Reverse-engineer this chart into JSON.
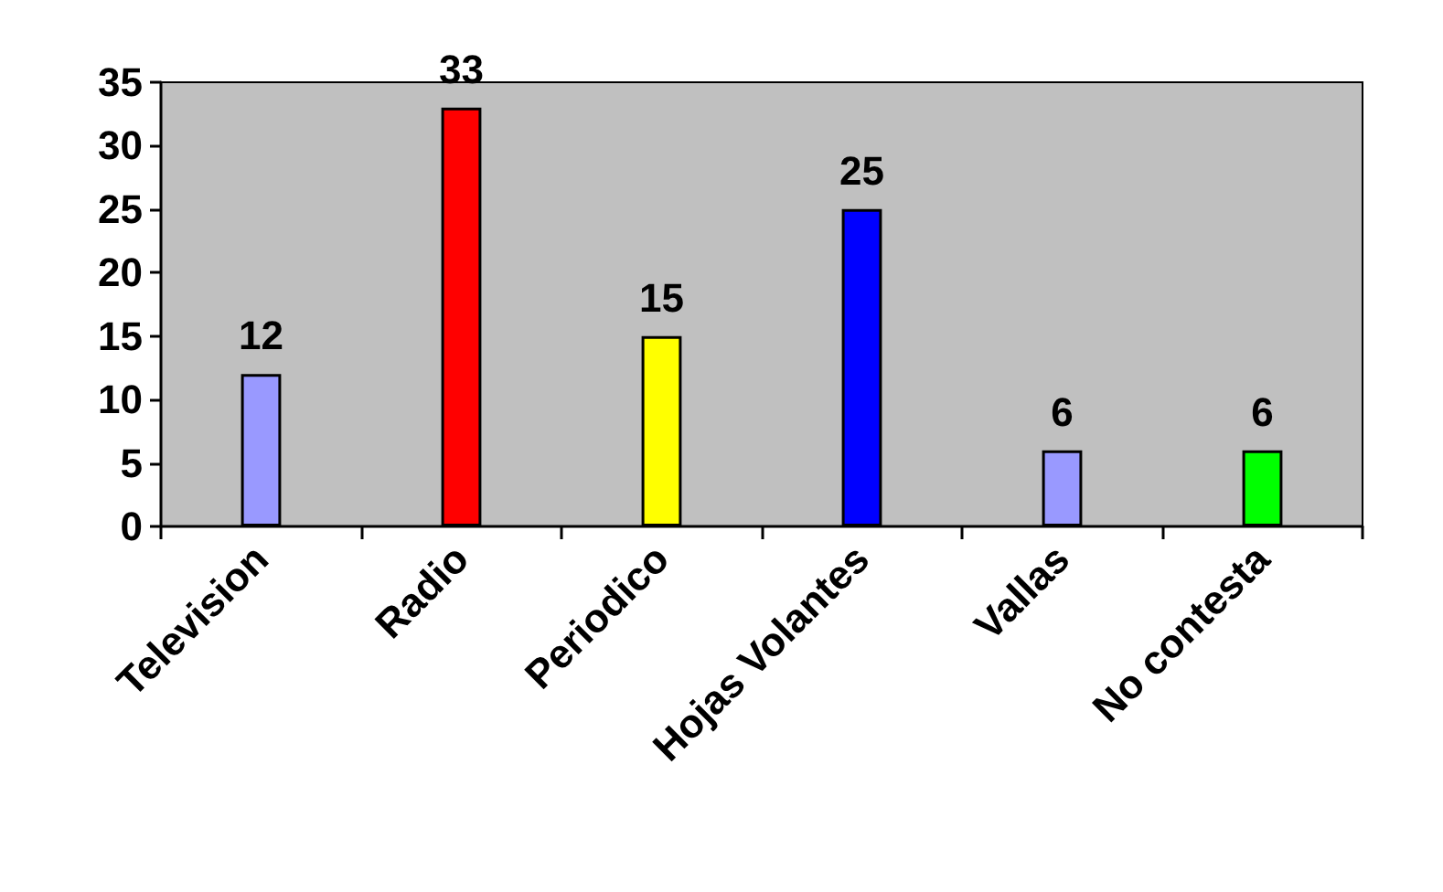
{
  "chart_data": {
    "type": "bar",
    "categories": [
      "Television",
      "Radio",
      "Periodico",
      "Hojas Volantes",
      "Vallas",
      "No contesta"
    ],
    "values": [
      12,
      33,
      15,
      25,
      6,
      6
    ],
    "colors": [
      "#9999ff",
      "#ff0000",
      "#ffff00",
      "#0000ff",
      "#9999ff",
      "#00ff00"
    ],
    "ylim": [
      0,
      35
    ],
    "yticks": [
      0,
      5,
      10,
      15,
      20,
      25,
      30,
      35
    ],
    "grid": false,
    "data_labels": true
  }
}
